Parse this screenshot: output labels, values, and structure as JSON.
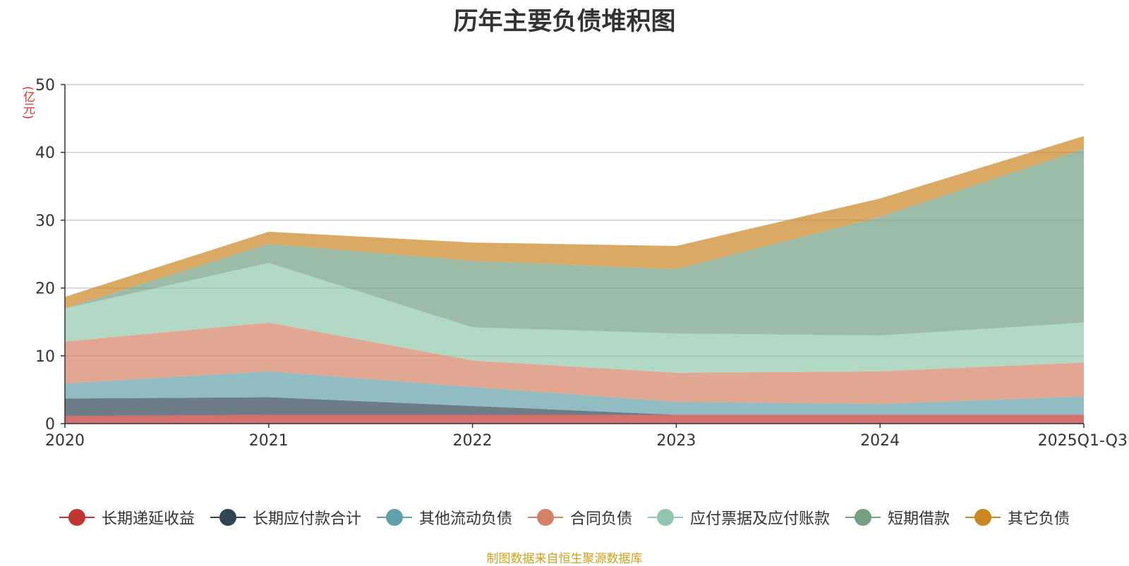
{
  "chart_data": {
    "type": "area",
    "stacked": true,
    "title": "历年主要负债堆积图",
    "ylabel": "(亿元)",
    "xlabel": "",
    "categories": [
      "2020",
      "2021",
      "2022",
      "2023",
      "2024",
      "2025Q1-Q3"
    ],
    "ylim": [
      0,
      50
    ],
    "yticks": [
      0,
      10,
      20,
      30,
      40,
      50
    ],
    "grid": true,
    "legend_position": "bottom",
    "series": [
      {
        "name": "长期递延收益",
        "color": "#c23531",
        "values": [
          1.1,
          1.3,
          1.3,
          1.3,
          1.3,
          1.3
        ]
      },
      {
        "name": "长期应付款合计",
        "color": "#2f4554",
        "values": [
          2.6,
          2.6,
          1.3,
          0.0,
          0.0,
          0.0
        ]
      },
      {
        "name": "其他流动负债",
        "color": "#61a0a8",
        "values": [
          2.2,
          3.8,
          2.8,
          1.9,
          1.6,
          2.7
        ]
      },
      {
        "name": "合同负债",
        "color": "#d48265",
        "values": [
          6.2,
          7.2,
          3.9,
          4.3,
          4.8,
          5.0
        ]
      },
      {
        "name": "应付票据及应付账款",
        "color": "#91c7ae",
        "values": [
          4.9,
          8.8,
          4.9,
          5.8,
          5.3,
          5.9
        ]
      },
      {
        "name": "短期借款",
        "color": "#749f83",
        "values": [
          0.0,
          2.8,
          9.8,
          9.5,
          17.5,
          25.6
        ]
      },
      {
        "name": "其它负债",
        "color": "#ca8622",
        "values": [
          1.7,
          1.8,
          2.7,
          3.4,
          2.7,
          1.9
        ]
      }
    ]
  },
  "source_note": "制图数据来自恒生聚源数据库"
}
